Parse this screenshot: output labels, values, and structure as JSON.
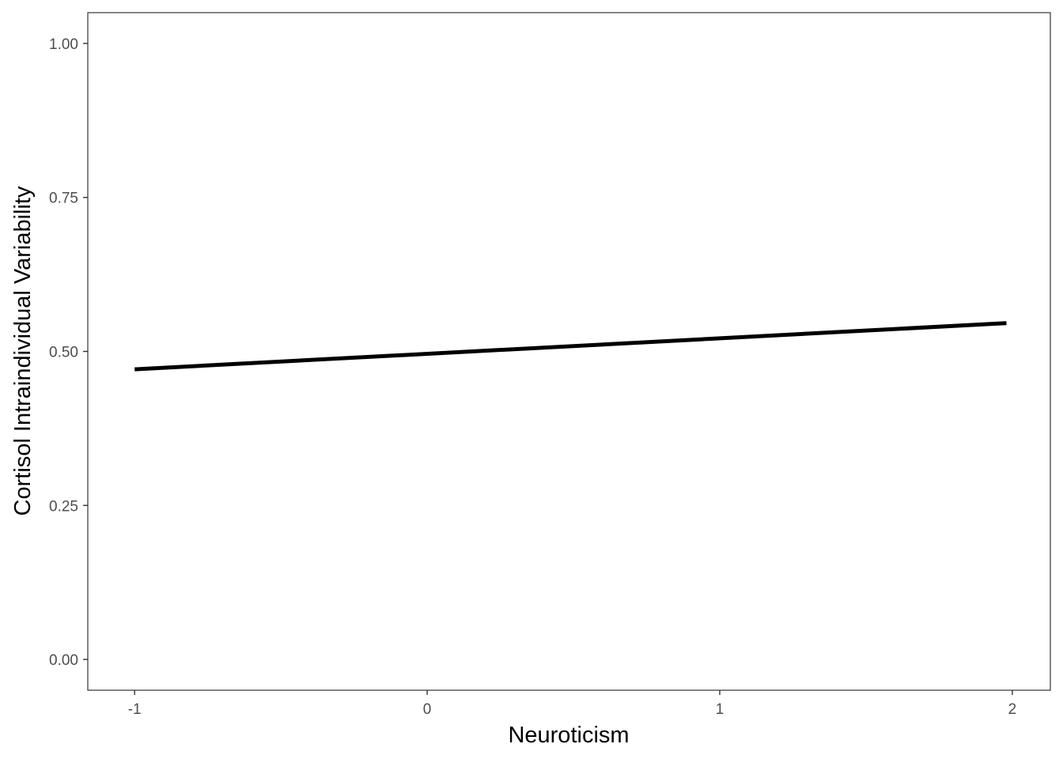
{
  "chart_data": {
    "type": "line",
    "title": "",
    "xlabel": "Neuroticism",
    "ylabel": "Cortisol Intraindividual Variability",
    "xlim": [
      -1.16,
      2.13
    ],
    "ylim": [
      -0.05,
      1.05
    ],
    "x_ticks": [
      -1,
      0,
      1,
      2
    ],
    "x_tick_labels": [
      "-1",
      "0",
      "1",
      "2"
    ],
    "y_ticks": [
      0,
      0.25,
      0.5,
      0.75,
      1
    ],
    "y_tick_labels": [
      "0.00",
      "0.25",
      "0.50",
      "0.75",
      "1.00"
    ],
    "grid": false,
    "legend": "none",
    "series": [
      {
        "x": [
          -1.0,
          1.98
        ],
        "y": [
          0.471,
          0.546
        ],
        "color": "#000000"
      }
    ]
  }
}
